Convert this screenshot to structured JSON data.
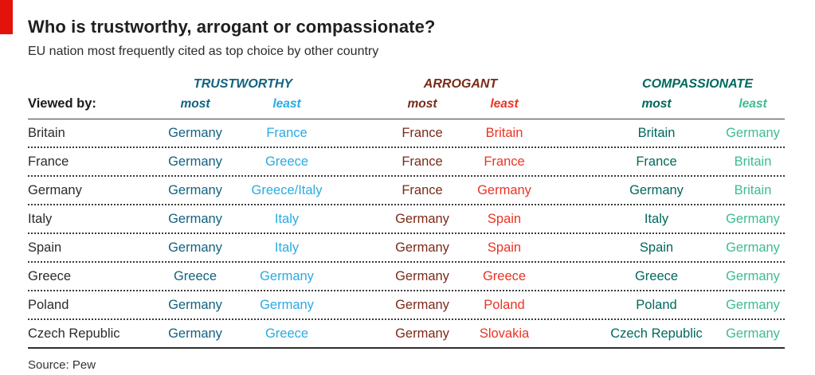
{
  "header": {
    "title": "Who is trustworthy, arrogant or compassionate?",
    "subtitle": "EU nation most frequently cited as top choice by other country"
  },
  "table": {
    "viewed_by_label": "Viewed by:",
    "groups": {
      "trustworthy": {
        "label": "TRUSTWORTHY",
        "most": "most",
        "least": "least"
      },
      "arrogant": {
        "label": "ARROGANT",
        "most": "most",
        "least": "least"
      },
      "compassionate": {
        "label": "COMPASSIONATE",
        "most": "most",
        "least": "least"
      }
    },
    "rows": [
      {
        "viewer": "Britain",
        "trustworthy_most": "Germany",
        "trustworthy_least": "France",
        "arrogant_most": "France",
        "arrogant_least": "Britain",
        "compassionate_most": "Britain",
        "compassionate_least": "Germany"
      },
      {
        "viewer": "France",
        "trustworthy_most": "Germany",
        "trustworthy_least": "Greece",
        "arrogant_most": "France",
        "arrogant_least": "France",
        "compassionate_most": "France",
        "compassionate_least": "Britain"
      },
      {
        "viewer": "Germany",
        "trustworthy_most": "Germany",
        "trustworthy_least": "Greece/Italy",
        "arrogant_most": "France",
        "arrogant_least": "Germany",
        "compassionate_most": "Germany",
        "compassionate_least": "Britain"
      },
      {
        "viewer": "Italy",
        "trustworthy_most": "Germany",
        "trustworthy_least": "Italy",
        "arrogant_most": "Germany",
        "arrogant_least": "Spain",
        "compassionate_most": "Italy",
        "compassionate_least": "Germany"
      },
      {
        "viewer": "Spain",
        "trustworthy_most": "Germany",
        "trustworthy_least": "Italy",
        "arrogant_most": "Germany",
        "arrogant_least": "Spain",
        "compassionate_most": "Spain",
        "compassionate_least": "Germany"
      },
      {
        "viewer": "Greece",
        "trustworthy_most": "Greece",
        "trustworthy_least": "Germany",
        "arrogant_most": "Germany",
        "arrogant_least": "Greece",
        "compassionate_most": "Greece",
        "compassionate_least": "Germany"
      },
      {
        "viewer": "Poland",
        "trustworthy_most": "Germany",
        "trustworthy_least": "Germany",
        "arrogant_most": "Germany",
        "arrogant_least": "Poland",
        "compassionate_most": "Poland",
        "compassionate_least": "Germany"
      },
      {
        "viewer": "Czech Republic",
        "trustworthy_most": "Germany",
        "trustworthy_least": "Greece",
        "arrogant_most": "Germany",
        "arrogant_least": "Slovakia",
        "compassionate_most": "Czech Republic",
        "compassionate_least": "Germany"
      }
    ]
  },
  "footer": {
    "source": "Source: Pew"
  },
  "colors": {
    "accent_red": "#E3120B",
    "title_text": "#1f1f1f",
    "trustworthy_most": "#12627F",
    "trustworthy_least": "#29ABE2",
    "arrogant_most": "#7A2A18",
    "arrogant_least": "#EB3323",
    "compassionate_most": "#01685D",
    "compassionate_least": "#3CBD8D",
    "rule": "#3c3c3c"
  },
  "chart_data": {
    "type": "table",
    "title": "Who is trustworthy, arrogant or compassionate?",
    "subtitle": "EU nation most frequently cited as top choice by other country",
    "columns": [
      "Viewed by:",
      "Trustworthy most",
      "Trustworthy least",
      "Arrogant most",
      "Arrogant least",
      "Compassionate most",
      "Compassionate least"
    ],
    "rows": [
      [
        "Britain",
        "Germany",
        "France",
        "France",
        "Britain",
        "Britain",
        "Germany"
      ],
      [
        "France",
        "Germany",
        "Greece",
        "France",
        "France",
        "France",
        "Britain"
      ],
      [
        "Germany",
        "Germany",
        "Greece/Italy",
        "France",
        "Germany",
        "Germany",
        "Britain"
      ],
      [
        "Italy",
        "Germany",
        "Italy",
        "Germany",
        "Spain",
        "Italy",
        "Germany"
      ],
      [
        "Spain",
        "Germany",
        "Italy",
        "Germany",
        "Spain",
        "Spain",
        "Germany"
      ],
      [
        "Greece",
        "Greece",
        "Germany",
        "Germany",
        "Greece",
        "Greece",
        "Germany"
      ],
      [
        "Poland",
        "Germany",
        "Germany",
        "Germany",
        "Poland",
        "Poland",
        "Germany"
      ],
      [
        "Czech Republic",
        "Germany",
        "Greece",
        "Germany",
        "Slovakia",
        "Czech Republic",
        "Germany"
      ]
    ],
    "source": "Source: Pew",
    "legend_position": "none",
    "grid": "dotted row separators"
  }
}
